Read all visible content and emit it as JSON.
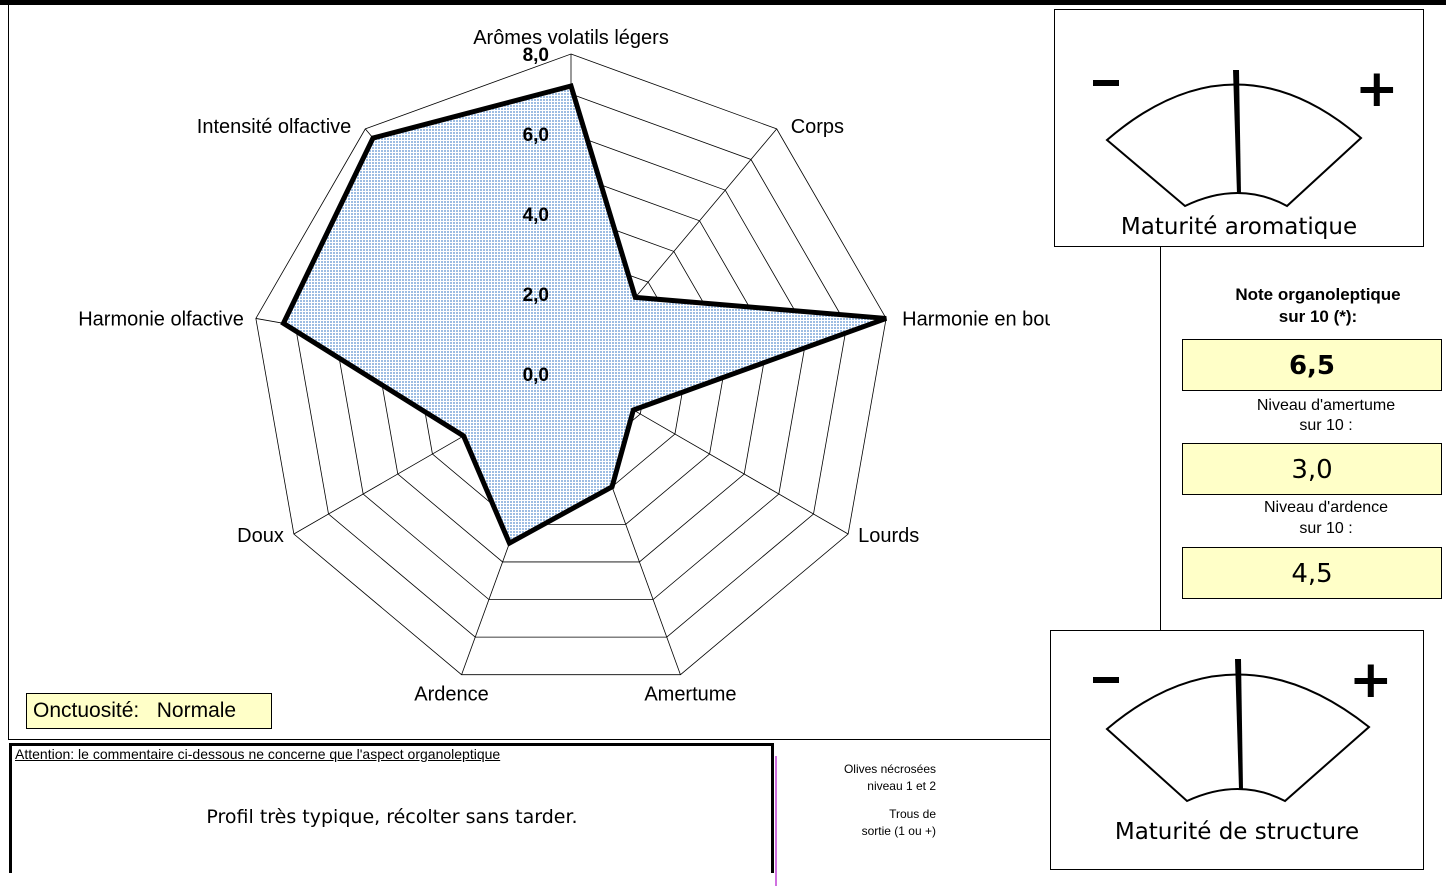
{
  "chart_data": {
    "type": "radar",
    "axes": [
      "Arômes volatils légers",
      "Corps",
      "Harmonie en bouche",
      "Lourds",
      "Amertume",
      "Ardence",
      "Doux",
      "Harmonie olfactive",
      "Intensité olfactive"
    ],
    "values": [
      7.2,
      2.5,
      8.0,
      1.8,
      3.0,
      4.5,
      3.1,
      7.3,
      7.7
    ],
    "rlim": [
      0,
      8
    ],
    "ticks": [
      "0,0",
      "2,0",
      "4,0",
      "6,0",
      "8,0"
    ],
    "grid": true,
    "fill_color": "#bcd3ec",
    "line_color": "#000000"
  },
  "gauges": {
    "aroma": {
      "title": "Maturité aromatique",
      "minus": "-",
      "plus": "+",
      "level": 0.47
    },
    "structure": {
      "title": "Maturité de structure",
      "minus": "-",
      "plus": "+",
      "level": 0.47
    }
  },
  "scores": {
    "organoleptic_heading_1": "Note organoleptique",
    "organoleptic_heading_2": "sur 10 (*):",
    "organoleptic_value": "6,5",
    "bitterness_label_1": "Niveau d'amertume",
    "bitterness_label_2": "sur 10 :",
    "bitterness_value": "3,0",
    "pungency_label_1": "Niveau d'ardence",
    "pungency_label_2": "sur 10 :",
    "pungency_value": "4,5"
  },
  "onctuosite": {
    "label": "Onctuosité:",
    "value": "Normale"
  },
  "comment": {
    "warning": "Attention: le commentaire ci-dessous ne concerne que l'aspect organoleptique",
    "text": "Profil très typique, récolter sans tarder."
  },
  "side_notes": {
    "olives_1": "Olives nécrosées",
    "olives_2": "niveau 1 et 2",
    "trous_1": "Trous de",
    "trous_2": "sortie (1 ou +)"
  },
  "colors": {
    "field_bg": "#ffffc8",
    "accent_pink": "#d070e0"
  }
}
